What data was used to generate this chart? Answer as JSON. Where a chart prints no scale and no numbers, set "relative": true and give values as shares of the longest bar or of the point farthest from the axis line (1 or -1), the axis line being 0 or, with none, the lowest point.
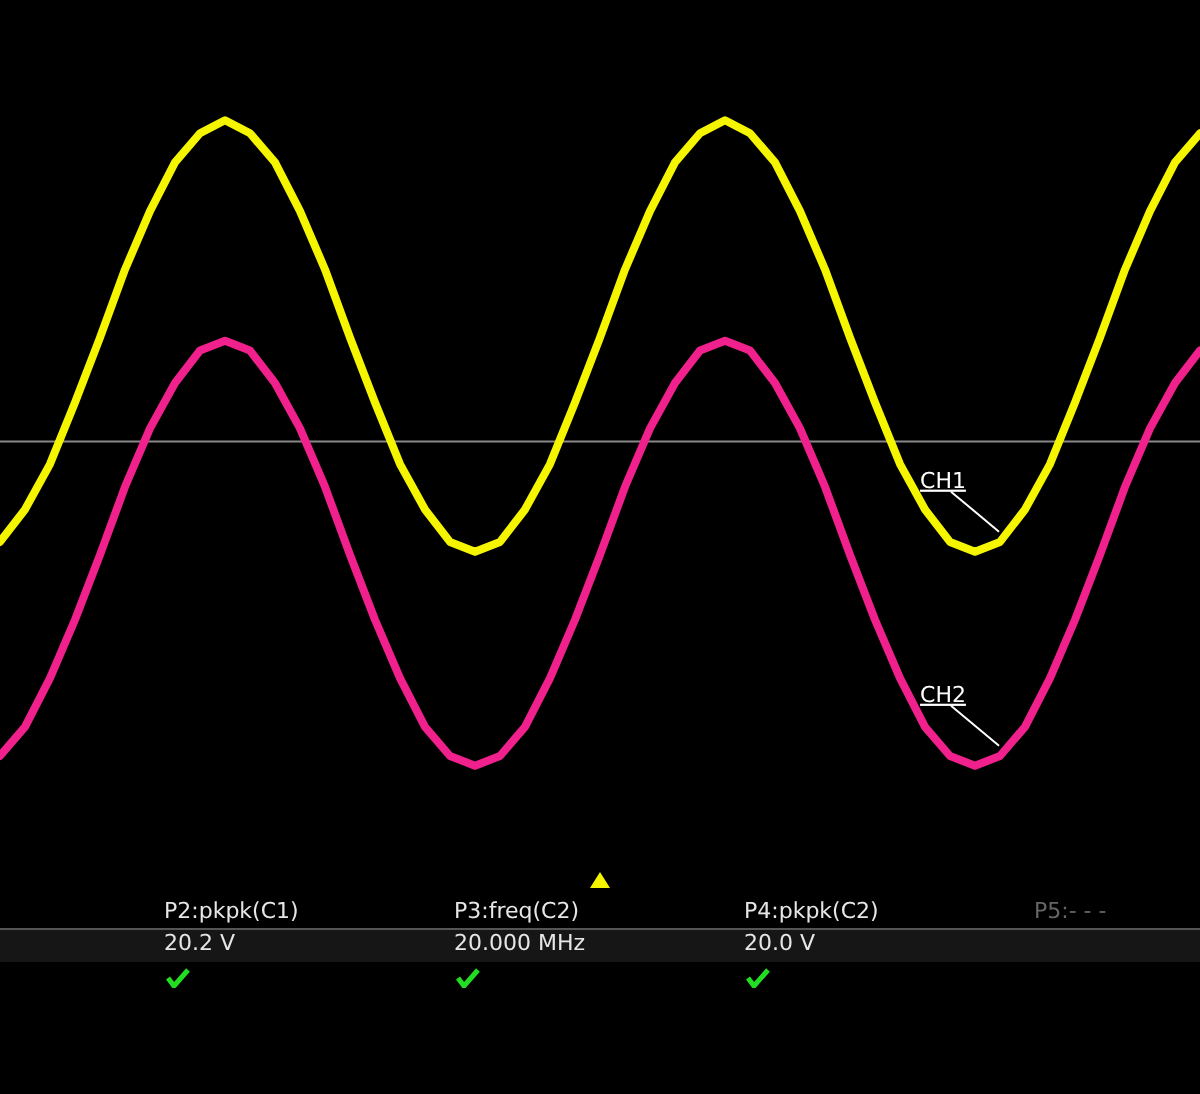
{
  "chart_data": {
    "type": "line",
    "relative": true,
    "categories": [
      null,
      null,
      null,
      null,
      null,
      null,
      null,
      null,
      null,
      null,
      null,
      null,
      null,
      null,
      null,
      null,
      null,
      null,
      null,
      null,
      null,
      null,
      null,
      null,
      null,
      null,
      null,
      null,
      null,
      null,
      null,
      null,
      null,
      null,
      null,
      null,
      null,
      null,
      null,
      null,
      null,
      null,
      null,
      null,
      null,
      null,
      null,
      null,
      null
    ],
    "series": [
      {
        "name": "CH1",
        "color": "#f5f500",
        "values": [
          -0.31,
          -0.21,
          -0.07,
          0.12,
          0.32,
          0.53,
          0.71,
          0.86,
          0.95,
          0.99,
          0.95,
          0.86,
          0.71,
          0.53,
          0.32,
          0.12,
          -0.07,
          -0.21,
          -0.31,
          -0.34,
          -0.31,
          -0.21,
          -0.07,
          0.12,
          0.32,
          0.53,
          0.71,
          0.86,
          0.95,
          0.99,
          0.95,
          0.86,
          0.71,
          0.53,
          0.32,
          0.12,
          -0.07,
          -0.21,
          -0.31,
          -0.34,
          -0.31,
          -0.21,
          -0.07,
          0.12,
          0.32,
          0.53,
          0.71,
          0.86,
          0.95
        ]
      },
      {
        "name": "CH2",
        "color": "#f0208c",
        "values": [
          -0.97,
          -0.88,
          -0.73,
          -0.55,
          -0.35,
          -0.14,
          0.04,
          0.18,
          0.28,
          0.31,
          0.28,
          0.18,
          0.04,
          -0.14,
          -0.35,
          -0.55,
          -0.73,
          -0.88,
          -0.97,
          -1,
          -0.97,
          -0.88,
          -0.73,
          -0.55,
          -0.35,
          -0.14,
          0.04,
          0.18,
          0.28,
          0.31,
          0.28,
          0.18,
          0.04,
          -0.14,
          -0.35,
          -0.55,
          -0.73,
          -0.88,
          -0.97,
          -1,
          -0.97,
          -0.88,
          -0.73,
          -0.55,
          -0.35,
          -0.14,
          0.04,
          0.18,
          0.28
        ]
      }
    ],
    "marker": "none",
    "line_style": "solid",
    "annotations": [
      "P2:pkpk(C1)",
      "20.2 V",
      "P3:freq(C2)",
      "20.000 MHz",
      "P4:pkpk(C2)",
      "20.0 V",
      "P5:- - -"
    ]
  }
}
